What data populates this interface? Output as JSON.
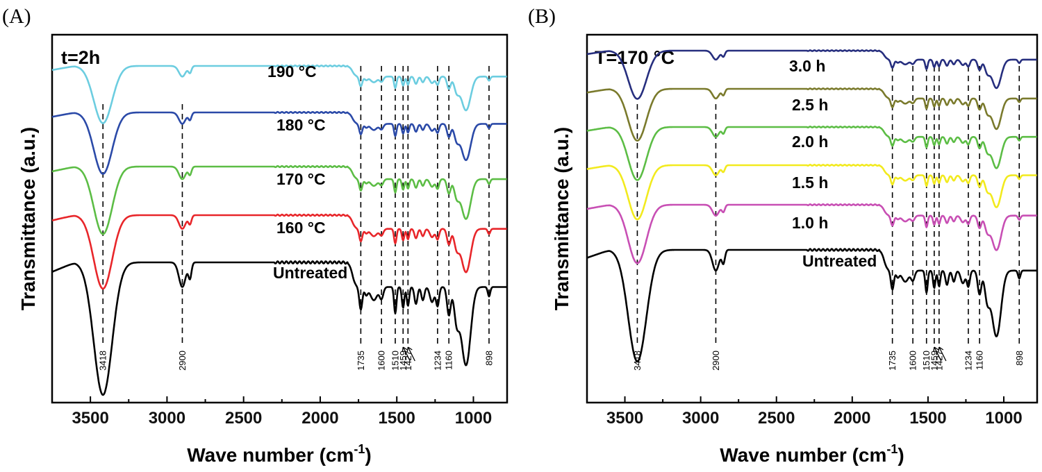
{
  "chart_data": [
    {
      "type": "line",
      "panel": "(A)",
      "title": "t=2h",
      "xlabel": "Wave number (cm",
      "xlabel_sup": "-1",
      "xlabel_close": ")",
      "ylabel": "Transmittance (a.u.)",
      "xlim": [
        3750,
        780
      ],
      "xticks": [
        3500,
        3000,
        2500,
        2000,
        1500,
        1000
      ],
      "xtick_labels": [
        "3500",
        "3000",
        "2500",
        "2000",
        "1500",
        "1000"
      ],
      "peaks": [
        3418,
        2900,
        1735,
        1600,
        1510,
        1459,
        1427,
        1234,
        1160,
        898
      ],
      "peak_labels": [
        "3418",
        "2900",
        "1735",
        "1600",
        "1510",
        "1459",
        "1427",
        "1234",
        "1160",
        "898"
      ],
      "series": [
        {
          "name": "Untreated",
          "color": "#000000",
          "offset": 0.0
        },
        {
          "name": "160 °C",
          "color": "#e8262a",
          "offset": 1.0
        },
        {
          "name": "170 °C",
          "color": "#5cbd45",
          "offset": 2.0
        },
        {
          "name": "180 °C",
          "color": "#2b4aa8",
          "offset": 3.0
        },
        {
          "name": "190 °C",
          "color": "#6ccde0",
          "offset": 4.0
        }
      ]
    },
    {
      "type": "line",
      "panel": "(B)",
      "title": "T=170 °C",
      "xlabel": "Wave number (cm",
      "xlabel_sup": "-1",
      "xlabel_close": ")",
      "ylabel": "Transmittance (a.u.)",
      "xlim": [
        3750,
        780
      ],
      "xticks": [
        3500,
        3000,
        2500,
        2000,
        1500,
        1000
      ],
      "xtick_labels": [
        "3500",
        "3000",
        "2500",
        "2000",
        "1500",
        "1000"
      ],
      "peaks": [
        3418,
        2900,
        1735,
        1600,
        1510,
        1459,
        1427,
        1234,
        1160,
        898
      ],
      "peak_labels": [
        "3418",
        "2900",
        "1735",
        "1600",
        "1510",
        "1459",
        "1427",
        "1234",
        "1160",
        "898"
      ],
      "series": [
        {
          "name": "Untreated",
          "color": "#000000",
          "offset": 0.0
        },
        {
          "name": "1.0 h",
          "color": "#c84fb4",
          "offset": 1.0
        },
        {
          "name": "1.5 h",
          "color": "#f2ea1e",
          "offset": 2.0
        },
        {
          "name": "2.0 h",
          "color": "#5cbd45",
          "offset": 3.0
        },
        {
          "name": "2.5 h",
          "color": "#7a7a2c",
          "offset": 4.0
        },
        {
          "name": "3.0 h",
          "color": "#262e7e",
          "offset": 5.0
        }
      ]
    }
  ]
}
